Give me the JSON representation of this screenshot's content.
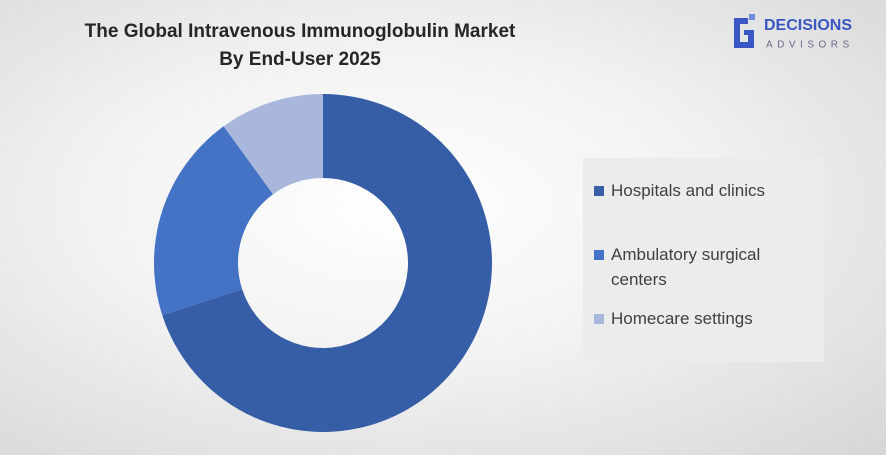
{
  "chart_data": {
    "type": "donut",
    "title": [
      "The Global Intravenous Immunoglobulin Market",
      "By End-User 2025"
    ],
    "categories": [
      "Hospitals and clinics",
      "Ambulatory surgical centers",
      "Homecare settings"
    ],
    "values": [
      70,
      20,
      10
    ],
    "colors": [
      "#365ea6",
      "#4472c4",
      "#a9b7dc"
    ],
    "legend": "right"
  },
  "logo": {
    "name": "DECISIONS",
    "tagline": "ADVISORS"
  }
}
